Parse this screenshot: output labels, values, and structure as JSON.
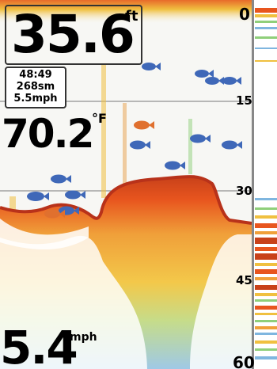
{
  "depth": {
    "value": "35.6",
    "unit": "ft"
  },
  "info": {
    "timer": "48:49",
    "distance": "268sm",
    "speed": "5.5mph"
  },
  "water_temp": {
    "value": "70.2",
    "unit": "°F"
  },
  "boat_speed": {
    "value": "5.4",
    "unit": "mph"
  },
  "depth_scale": {
    "label_0": "0",
    "label_15": "15",
    "label_30": "30",
    "label_45": "45",
    "label_60": "60"
  },
  "colors": {
    "bottom_core": "#e8551e",
    "bottom_mid": "#f2b23a",
    "scatter_yellow": "#f0d040",
    "scatter_green": "#8fcf7a",
    "scatter_blue": "#7fb6df",
    "fish_blue": "#3f68b8",
    "fish_orange": "#e0702e"
  }
}
